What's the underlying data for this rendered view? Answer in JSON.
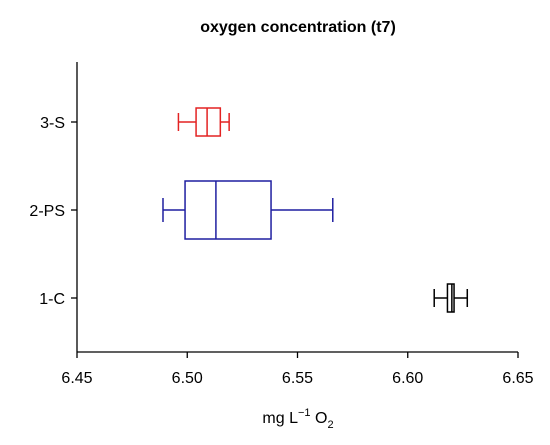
{
  "chart_data": {
    "type": "boxplot",
    "orientation": "horizontal",
    "title": "oxygen concentration (t7)",
    "xlabel": {
      "base": "mg L",
      "sup": "−1",
      "mid": " O",
      "sub": "2"
    },
    "ylabel": "",
    "xlim": [
      6.45,
      6.65
    ],
    "xticks": [
      "6.45",
      "6.50",
      "6.55",
      "6.60",
      "6.65"
    ],
    "grid": false,
    "categories": [
      "1-C",
      "2-PS",
      "3-S"
    ],
    "boxes": [
      {
        "category": "1-C",
        "color": "#000000",
        "min": 6.612,
        "q1": 6.618,
        "median": 6.62,
        "q3": 6.621,
        "max": 6.627
      },
      {
        "category": "2-PS",
        "color": "#1f1fa0",
        "min": 6.489,
        "q1": 6.499,
        "median": 6.513,
        "q3": 6.538,
        "max": 6.566
      },
      {
        "category": "3-S",
        "color": "#e32222",
        "min": 6.496,
        "q1": 6.504,
        "median": 6.509,
        "q3": 6.515,
        "max": 6.519
      }
    ]
  }
}
